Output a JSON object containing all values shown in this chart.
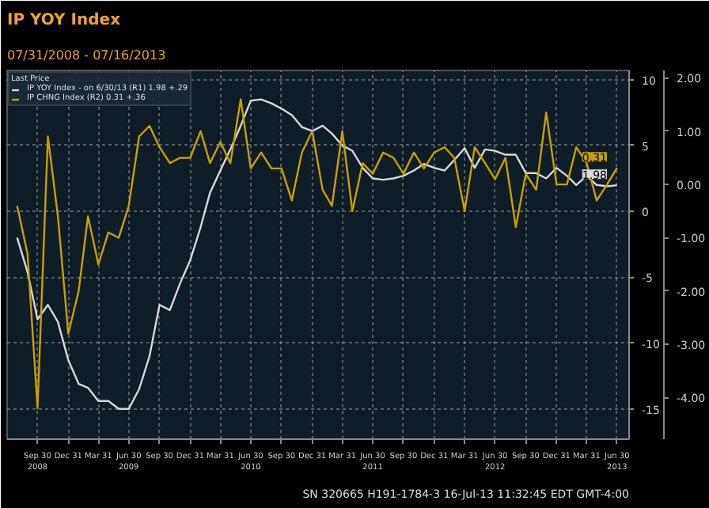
{
  "chart_data": {
    "type": "line",
    "title": "IP YOY Index",
    "subtitle": "07/31/2008 - 07/16/2013",
    "legend_title": "Last Price",
    "x": [
      "2008-07-31",
      "2008-08-31",
      "2008-09-30",
      "2008-10-31",
      "2008-11-30",
      "2008-12-31",
      "2009-01-31",
      "2009-02-28",
      "2009-03-31",
      "2009-04-30",
      "2009-05-31",
      "2009-06-30",
      "2009-07-31",
      "2009-08-31",
      "2009-09-30",
      "2009-10-31",
      "2009-11-30",
      "2009-12-31",
      "2010-01-31",
      "2010-02-28",
      "2010-03-31",
      "2010-04-30",
      "2010-05-31",
      "2010-06-30",
      "2010-07-31",
      "2010-08-31",
      "2010-09-30",
      "2010-10-31",
      "2010-11-30",
      "2010-12-31",
      "2011-01-31",
      "2011-02-28",
      "2011-03-31",
      "2011-04-30",
      "2011-05-31",
      "2011-06-30",
      "2011-07-31",
      "2011-08-31",
      "2011-09-30",
      "2011-10-31",
      "2011-11-30",
      "2011-12-31",
      "2012-01-31",
      "2012-02-29",
      "2012-03-31",
      "2012-04-30",
      "2012-05-31",
      "2012-06-30",
      "2012-07-31",
      "2012-08-31",
      "2012-09-30",
      "2012-10-31",
      "2012-11-30",
      "2012-12-31",
      "2013-01-31",
      "2013-02-28",
      "2013-03-31",
      "2013-04-30",
      "2013-05-31",
      "2013-06-30"
    ],
    "series": [
      {
        "name": "IP YOY Index - on 6/30/13 (R1) 1.98 +.29",
        "color": "#d8d8d8",
        "values": [
          -2,
          -4.6,
          -8.2,
          -7.1,
          -8.4,
          -11.3,
          -13.1,
          -13.4,
          -14.4,
          -14.4,
          -15,
          -15,
          -13.5,
          -11,
          -7.1,
          -7.5,
          -5.5,
          -3.7,
          -1.2,
          1.4,
          3.1,
          4.7,
          6.5,
          8.4,
          8.5,
          8.2,
          7.8,
          7.3,
          6.4,
          6.1,
          6.5,
          5.9,
          5,
          4.6,
          3.3,
          2.5,
          2.4,
          2.5,
          2.7,
          3.1,
          3.6,
          3.3,
          3.1,
          3.9,
          4.8,
          3.3,
          4.7,
          4.6,
          4.3,
          4.3,
          2.9,
          2.9,
          2.5,
          3.3,
          2.7,
          2,
          2.7,
          2,
          1.9,
          1.98
        ],
        "value_labels": [
          null,
          null,
          null,
          null,
          null,
          null,
          null,
          null,
          null,
          null,
          null,
          null,
          null,
          null,
          null,
          null,
          null,
          null,
          null,
          null,
          null,
          null,
          null,
          null,
          null,
          null,
          null,
          null,
          null,
          null,
          null,
          null,
          null,
          null,
          null,
          null,
          null,
          null,
          null,
          null,
          null,
          null,
          null,
          null,
          null,
          null,
          null,
          null,
          null,
          null,
          null,
          null,
          null,
          null,
          null,
          null,
          null,
          null,
          null,
          "1.98"
        ]
      },
      {
        "name": "IP CHNG Index (R2) 0.31 +.36",
        "color": "#c8a000",
        "axis": "y2",
        "values": [
          -0.4,
          -1.3,
          -4.2,
          0.9,
          -0.6,
          -2.8,
          -2,
          -0.6,
          -1.5,
          -0.9,
          -1,
          -0.4,
          0.9,
          1.1,
          0.7,
          0.4,
          0.5,
          0.5,
          1,
          0.4,
          0.8,
          0.4,
          1.6,
          0.3,
          0.6,
          0.3,
          0.3,
          -0.3,
          0.6,
          1,
          -0.1,
          -0.4,
          1,
          -0.5,
          0.4,
          0.2,
          0.6,
          0.5,
          0.2,
          0.6,
          0.3,
          0.6,
          0.7,
          0.5,
          -0.5,
          0.7,
          0.4,
          0.1,
          0.5,
          -0.8,
          0.2,
          -0.1,
          1.35,
          0,
          0,
          0.7,
          0.4,
          -0.3,
          0,
          0.31
        ],
        "value_labels": [
          null,
          null,
          null,
          null,
          null,
          null,
          null,
          null,
          null,
          null,
          null,
          null,
          null,
          null,
          null,
          null,
          null,
          null,
          null,
          null,
          null,
          null,
          null,
          null,
          null,
          null,
          null,
          null,
          null,
          null,
          null,
          null,
          null,
          null,
          null,
          null,
          null,
          null,
          null,
          null,
          null,
          null,
          null,
          null,
          null,
          null,
          null,
          null,
          null,
          null,
          null,
          null,
          null,
          null,
          null,
          null,
          null,
          null,
          null,
          "0.31"
        ]
      }
    ],
    "xlim": [
      "2008-07-01",
      "2013-08-05"
    ],
    "xticks": [
      {
        "value": "2008-09-30",
        "label": "Sep 30\n2008"
      },
      {
        "value": "2008-12-31",
        "label": "Dec 31"
      },
      {
        "value": "2009-03-31",
        "label": "Mar 31"
      },
      {
        "value": "2009-06-30",
        "label": "Jun 30\n2009"
      },
      {
        "value": "2009-09-30",
        "label": "Sep 30"
      },
      {
        "value": "2009-12-31",
        "label": "Dec 31"
      },
      {
        "value": "2010-03-31",
        "label": "Mar 31"
      },
      {
        "value": "2010-06-30",
        "label": "Jun 30\n2010"
      },
      {
        "value": "2010-09-30",
        "label": "Sep 30"
      },
      {
        "value": "2010-12-31",
        "label": "Dec 31"
      },
      {
        "value": "2011-03-31",
        "label": "Mar 31"
      },
      {
        "value": "2011-06-30",
        "label": "Jun 30\n2011"
      },
      {
        "value": "2011-09-30",
        "label": "Sep 30"
      },
      {
        "value": "2011-12-31",
        "label": "Dec 31"
      },
      {
        "value": "2012-03-31",
        "label": "Mar 31"
      },
      {
        "value": "2012-06-30",
        "label": "Jun 30\n2012"
      },
      {
        "value": "2012-09-30",
        "label": "Sep 30"
      },
      {
        "value": "2012-12-31",
        "label": "Dec 31"
      },
      {
        "value": "2013-03-31",
        "label": "Mar 31"
      },
      {
        "value": "2013-06-30",
        "label": "Jun 30\n2013"
      }
    ],
    "ylim": [
      -17.3,
      10.7
    ],
    "yticks": [
      -15,
      -10,
      -5,
      0,
      5,
      10
    ],
    "y2lim": [
      -4.78,
      2.14
    ],
    "y2ticks": [
      {
        "value": -4,
        "label": "-4.00"
      },
      {
        "value": -3,
        "label": "-3.00"
      },
      {
        "value": -2,
        "label": "-2.00"
      },
      {
        "value": -1,
        "label": "-1.00"
      },
      {
        "value": 0,
        "label": "0.00"
      },
      {
        "value": 1,
        "label": "1.00"
      },
      {
        "value": 2,
        "label": "2.00"
      }
    ],
    "grid": true,
    "legend": "top left",
    "line_style": "solid",
    "annotations": [
      "SN 320665 H191-1784-3 16-Jul-13 11:32:45 EDT GMT-4:00"
    ]
  }
}
